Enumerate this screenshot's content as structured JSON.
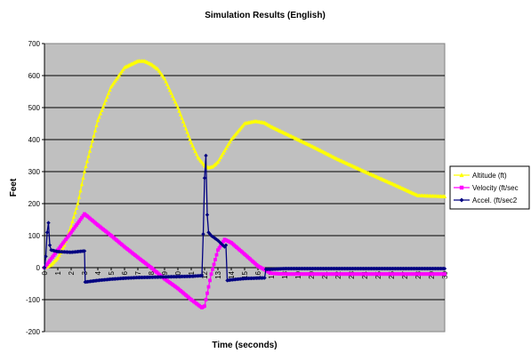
{
  "chart_data": {
    "type": "line",
    "title": "Simulation Results (English)",
    "xlabel": "Time (seconds)",
    "ylabel": "Feet",
    "xlim": [
      0,
      30
    ],
    "ylim": [
      -200,
      700
    ],
    "yticks": [
      -200,
      -100,
      0,
      100,
      200,
      300,
      400,
      500,
      600,
      700
    ],
    "ytick_labels": [
      "-200",
      "-100",
      "0",
      "100",
      "200",
      "300",
      "400",
      "500",
      "600",
      "700"
    ],
    "xtick_labels": [
      "0",
      "1",
      "2",
      "3",
      "4",
      "5",
      "6",
      "7",
      "8",
      "9",
      "10",
      "11",
      "12",
      "13",
      "14",
      "15",
      "16",
      "17",
      "18",
      "19",
      "20",
      "21",
      "22",
      "23",
      "24",
      "25",
      "26",
      "27",
      "28",
      "29",
      "30"
    ],
    "grid": "horizontal",
    "legend_position": "right",
    "plot_background": "#c0c0c0",
    "series": [
      {
        "name": "Altitude (ft)",
        "color": "#ffff00",
        "marker": "triangle",
        "x": [
          0,
          0.5,
          1,
          1.5,
          2,
          2.5,
          3,
          4,
          5,
          6,
          7,
          7.5,
          8,
          8.5,
          9,
          10,
          11,
          11.5,
          12,
          12.3,
          12.6,
          13,
          14,
          15,
          15.8,
          16.5,
          17,
          18,
          20,
          22,
          24,
          26,
          28,
          30
        ],
        "values": [
          0,
          8,
          30,
          70,
          130,
          200,
          300,
          460,
          565,
          625,
          645,
          645,
          635,
          620,
          590,
          500,
          390,
          345,
          318,
          312,
          315,
          330,
          400,
          450,
          457,
          452,
          440,
          420,
          380,
          338,
          300,
          263,
          225,
          222
        ]
      },
      {
        "name": "Velocity (ft/sec",
        "color": "#ff00ff",
        "marker": "square",
        "x": [
          0,
          1,
          2,
          3,
          4,
          5,
          6,
          7,
          8,
          9,
          10,
          11,
          11.8,
          12,
          12.5,
          13,
          13.5,
          14,
          15,
          16,
          17,
          18,
          20,
          22,
          24,
          26,
          28,
          30
        ],
        "values": [
          0,
          55,
          110,
          168,
          133,
          100,
          65,
          32,
          0,
          -35,
          -65,
          -100,
          -125,
          -120,
          -20,
          55,
          88,
          78,
          42,
          5,
          -18,
          -20,
          -20,
          -20,
          -20,
          -20,
          -20,
          -20
        ]
      },
      {
        "name": "Accel. (ft/sec2",
        "color": "#000080",
        "marker": "diamond",
        "x": [
          0,
          0.1,
          0.2,
          0.3,
          0.4,
          0.5,
          1,
          2,
          3,
          3.05,
          4,
          5,
          6,
          7,
          8,
          9,
          10,
          11,
          11.8,
          11.9,
          12,
          12.1,
          12.2,
          12.3,
          12.5,
          13,
          13.5,
          13.6,
          13.7,
          14,
          15,
          16.5,
          16.6,
          17,
          18,
          20,
          22,
          24,
          26,
          28,
          30
        ],
        "values": [
          0,
          35,
          110,
          140,
          70,
          55,
          50,
          48,
          52,
          -45,
          -40,
          -36,
          -33,
          -31,
          -30,
          -29,
          -28,
          -27,
          -25,
          105,
          280,
          350,
          165,
          110,
          100,
          85,
          65,
          70,
          -40,
          -38,
          -34,
          -32,
          -5,
          -5,
          -3,
          -3,
          -3,
          -3,
          -3,
          -3,
          -3
        ]
      }
    ]
  }
}
